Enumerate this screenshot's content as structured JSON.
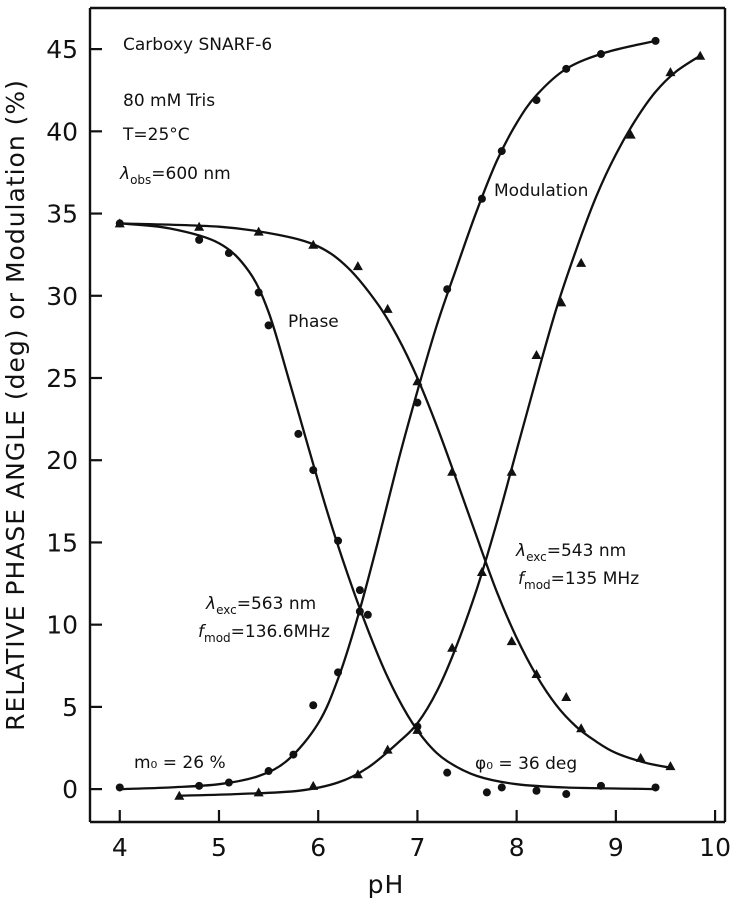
{
  "chart_data": {
    "type": "line",
    "xlabel": "pH",
    "ylabel": "RELATIVE PHASE ANGLE (deg) or Modulation (%)",
    "xlim": [
      3.7,
      10.1
    ],
    "ylim": [
      -2,
      47.5
    ],
    "xticks": [
      "4",
      "5",
      "6",
      "7",
      "8",
      "9",
      "10"
    ],
    "yticks": [
      "0",
      "5",
      "10",
      "15",
      "20",
      "25",
      "30",
      "35",
      "40",
      "45"
    ],
    "grid": false,
    "series": [
      {
        "name": "Phase",
        "marker": "circle",
        "excitation": "563",
        "points": [
          [
            4.0,
            34.4
          ],
          [
            4.8,
            33.4
          ],
          [
            5.1,
            32.6
          ],
          [
            5.4,
            30.2
          ],
          [
            5.5,
            28.2
          ],
          [
            5.8,
            21.6
          ],
          [
            5.95,
            19.4
          ],
          [
            6.2,
            15.1
          ],
          [
            6.42,
            10.8
          ],
          [
            6.5,
            10.6
          ],
          [
            7.0,
            3.8
          ],
          [
            7.3,
            1.0
          ],
          [
            7.7,
            -0.2
          ],
          [
            7.85,
            0.1
          ],
          [
            8.2,
            -0.1
          ],
          [
            8.5,
            -0.3
          ],
          [
            8.85,
            0.2
          ],
          [
            9.4,
            0.1
          ]
        ],
        "curve": [
          [
            4.0,
            34.4
          ],
          [
            4.5,
            34.1
          ],
          [
            5.0,
            33.2
          ],
          [
            5.3,
            31.5
          ],
          [
            5.5,
            29.0
          ],
          [
            5.7,
            25.0
          ],
          [
            5.9,
            20.8
          ],
          [
            6.1,
            16.7
          ],
          [
            6.3,
            13.0
          ],
          [
            6.5,
            9.7
          ],
          [
            6.7,
            6.8
          ],
          [
            6.9,
            4.5
          ],
          [
            7.1,
            2.8
          ],
          [
            7.3,
            1.7
          ],
          [
            7.6,
            0.8
          ],
          [
            8.0,
            0.3
          ],
          [
            8.5,
            0.1
          ],
          [
            9.4,
            0.0
          ]
        ]
      },
      {
        "name": "",
        "marker": "circle",
        "excitation": "563",
        "points": [
          [
            4.0,
            0.1
          ],
          [
            4.8,
            0.2
          ],
          [
            5.1,
            0.4
          ],
          [
            5.5,
            1.1
          ],
          [
            5.75,
            2.1
          ],
          [
            5.95,
            5.1
          ],
          [
            6.2,
            7.1
          ],
          [
            6.42,
            12.1
          ],
          [
            7.0,
            23.5
          ],
          [
            7.3,
            30.4
          ],
          [
            7.65,
            35.9
          ],
          [
            7.85,
            38.8
          ],
          [
            8.2,
            41.9
          ],
          [
            8.5,
            43.8
          ],
          [
            8.85,
            44.7
          ],
          [
            9.4,
            45.5
          ]
        ],
        "curve": [
          [
            4.0,
            0.0
          ],
          [
            4.5,
            0.1
          ],
          [
            5.0,
            0.3
          ],
          [
            5.4,
            0.8
          ],
          [
            5.7,
            1.8
          ],
          [
            6.0,
            4.0
          ],
          [
            6.2,
            6.7
          ],
          [
            6.4,
            10.5
          ],
          [
            6.6,
            15.0
          ],
          [
            6.8,
            19.8
          ],
          [
            7.0,
            24.2
          ],
          [
            7.2,
            28.3
          ],
          [
            7.4,
            31.8
          ],
          [
            7.6,
            35.2
          ],
          [
            7.8,
            38.2
          ],
          [
            8.0,
            40.5
          ],
          [
            8.2,
            42.2
          ],
          [
            8.5,
            43.8
          ],
          [
            8.9,
            44.8
          ],
          [
            9.4,
            45.5
          ]
        ]
      },
      {
        "name": "",
        "marker": "triangle",
        "excitation": "543",
        "points": [
          [
            4.0,
            34.4
          ],
          [
            4.8,
            34.2
          ],
          [
            5.4,
            33.9
          ],
          [
            5.95,
            33.1
          ],
          [
            6.4,
            31.8
          ],
          [
            6.7,
            29.2
          ],
          [
            7.0,
            24.8
          ],
          [
            7.35,
            19.3
          ],
          [
            7.95,
            9.0
          ],
          [
            8.2,
            7.0
          ],
          [
            8.5,
            5.6
          ],
          [
            8.65,
            3.7
          ],
          [
            9.25,
            1.9
          ],
          [
            9.55,
            1.4
          ]
        ],
        "curve": [
          [
            4.0,
            34.4
          ],
          [
            5.0,
            34.2
          ],
          [
            5.6,
            33.7
          ],
          [
            6.0,
            33.0
          ],
          [
            6.3,
            31.7
          ],
          [
            6.6,
            29.5
          ],
          [
            6.8,
            27.5
          ],
          [
            7.0,
            25.0
          ],
          [
            7.2,
            22.0
          ],
          [
            7.4,
            18.7
          ],
          [
            7.6,
            15.3
          ],
          [
            7.8,
            12.0
          ],
          [
            8.0,
            9.2
          ],
          [
            8.2,
            6.9
          ],
          [
            8.4,
            5.1
          ],
          [
            8.6,
            3.8
          ],
          [
            8.8,
            2.9
          ],
          [
            9.0,
            2.2
          ],
          [
            9.3,
            1.6
          ],
          [
            9.55,
            1.3
          ]
        ]
      },
      {
        "name": "",
        "marker": "triangle",
        "excitation": "543",
        "points": [
          [
            4.6,
            -0.4
          ],
          [
            5.4,
            -0.2
          ],
          [
            5.95,
            0.2
          ],
          [
            6.4,
            0.9
          ],
          [
            6.7,
            2.4
          ],
          [
            7.0,
            3.6
          ],
          [
            7.35,
            8.6
          ],
          [
            7.65,
            13.2
          ],
          [
            7.95,
            19.3
          ],
          [
            8.2,
            26.4
          ],
          [
            8.45,
            29.6
          ],
          [
            8.65,
            32.0
          ],
          [
            9.15,
            39.8
          ],
          [
            9.55,
            43.6
          ],
          [
            9.85,
            44.6
          ]
        ],
        "curve": [
          [
            4.6,
            -0.4
          ],
          [
            5.2,
            -0.3
          ],
          [
            5.8,
            -0.1
          ],
          [
            6.2,
            0.4
          ],
          [
            6.5,
            1.3
          ],
          [
            6.8,
            2.8
          ],
          [
            7.0,
            4.0
          ],
          [
            7.2,
            6.0
          ],
          [
            7.4,
            8.8
          ],
          [
            7.6,
            12.2
          ],
          [
            7.8,
            16.2
          ],
          [
            8.0,
            20.6
          ],
          [
            8.2,
            25.0
          ],
          [
            8.4,
            29.2
          ],
          [
            8.6,
            32.8
          ],
          [
            8.8,
            36.0
          ],
          [
            9.0,
            38.6
          ],
          [
            9.2,
            40.7
          ],
          [
            9.4,
            42.4
          ],
          [
            9.6,
            43.6
          ],
          [
            9.85,
            44.6
          ]
        ]
      }
    ],
    "annotations": {
      "dye": "Carboxy  SNARF-6",
      "buffer": "80 mM  Tris",
      "temperature": "T=25°C",
      "obs_sym": "λ",
      "obs_sub": "obs",
      "obs_val": "=600 nm",
      "curve_label_modulation": "Modulation",
      "curve_label_phase": "Phase",
      "exc2_sym": "λ",
      "exc2_sub": "exc",
      "exc2_val": "=543 nm",
      "fmod2_sym": "f",
      "fmod2_sub": "mod",
      "fmod2_val": "=135 MHz",
      "exc1_sym": "λ",
      "exc1_sub": "exc",
      "exc1_val": "=563 nm",
      "fmod1_sym": "f",
      "fmod1_sub": "mod",
      "fmod1_val": "=136.6MHz",
      "m0": "m₀ = 26 %",
      "phi0": "φ₀ = 36 deg"
    }
  }
}
